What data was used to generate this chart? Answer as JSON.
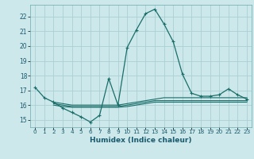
{
  "xlabel": "Humidex (Indice chaleur)",
  "background_color": "#cce8eb",
  "grid_color": "#aacfd4",
  "line_color": "#1a6e6a",
  "ylim": [
    14.5,
    22.8
  ],
  "xlim": [
    -0.5,
    23.5
  ],
  "yticks": [
    15,
    16,
    17,
    18,
    19,
    20,
    21,
    22
  ],
  "xtick_labels": [
    "0",
    "1",
    "2",
    "3",
    "4",
    "5",
    "6",
    "7",
    "8",
    "9",
    "10",
    "11",
    "12",
    "13",
    "14",
    "15",
    "16",
    "17",
    "18",
    "19",
    "20",
    "21",
    "22",
    "23"
  ],
  "series0_x": [
    0,
    1,
    2,
    3,
    4,
    5,
    6,
    7,
    8,
    9,
    10,
    11,
    12,
    13,
    14,
    15,
    16,
    17,
    18,
    19,
    20,
    21,
    22,
    23
  ],
  "series0_y": [
    17.2,
    16.5,
    16.2,
    15.8,
    15.5,
    15.2,
    14.85,
    15.3,
    17.8,
    16.0,
    19.9,
    21.1,
    22.2,
    22.5,
    21.5,
    20.3,
    18.1,
    16.8,
    16.6,
    16.6,
    16.7,
    17.1,
    16.7,
    16.4
  ],
  "series1_x": [
    2,
    3,
    4,
    5,
    6,
    7,
    8,
    9,
    10,
    11,
    12,
    13,
    14,
    15,
    16,
    17,
    18,
    19,
    20,
    21,
    22,
    23
  ],
  "series1_y": [
    16.2,
    16.1,
    16.0,
    16.0,
    16.0,
    16.0,
    16.0,
    16.0,
    16.1,
    16.2,
    16.3,
    16.4,
    16.5,
    16.5,
    16.5,
    16.5,
    16.5,
    16.5,
    16.5,
    16.5,
    16.5,
    16.5
  ],
  "series2_x": [
    2,
    3,
    4,
    5,
    6,
    7,
    8,
    9,
    10,
    11,
    12,
    13,
    14,
    15,
    16,
    17,
    18,
    19,
    20,
    21,
    22,
    23
  ],
  "series2_y": [
    16.1,
    16.0,
    15.9,
    15.9,
    15.9,
    15.9,
    15.9,
    15.9,
    16.0,
    16.1,
    16.2,
    16.3,
    16.3,
    16.3,
    16.3,
    16.3,
    16.3,
    16.3,
    16.3,
    16.3,
    16.3,
    16.3
  ],
  "series3_x": [
    2,
    3,
    4,
    5,
    6,
    7,
    8,
    9,
    10,
    11,
    12,
    13,
    14,
    15,
    16,
    17,
    18,
    19,
    20,
    21,
    22,
    23
  ],
  "series3_y": [
    16.0,
    15.9,
    15.85,
    15.85,
    15.85,
    15.85,
    15.85,
    15.85,
    15.9,
    16.0,
    16.1,
    16.2,
    16.2,
    16.2,
    16.2,
    16.2,
    16.2,
    16.2,
    16.2,
    16.2,
    16.2,
    16.2
  ]
}
